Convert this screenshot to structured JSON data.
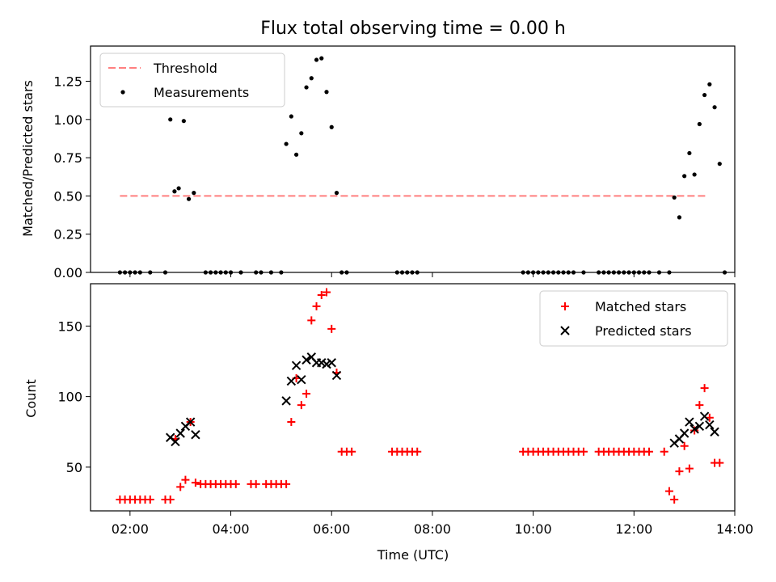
{
  "chart_data": [
    {
      "type": "scatter",
      "title": "Flux total observing time = 0.00 h",
      "xlabel": "",
      "ylabel": "Matched/Predicted stars",
      "xlim": [
        "01:13",
        "14:00"
      ],
      "ylim": [
        0,
        1.48
      ],
      "x_ticks": [
        "02:00",
        "04:00",
        "06:00",
        "08:00",
        "10:00",
        "12:00",
        "14:00"
      ],
      "x_ticklabels_visible": false,
      "y_ticks": [
        0.0,
        0.25,
        0.5,
        0.75,
        1.0,
        1.25
      ],
      "y_ticklabels": [
        "0.00",
        "0.25",
        "0.50",
        "0.75",
        "1.00",
        "1.25"
      ],
      "grid": false,
      "legend_position": "top-left",
      "legend": [
        {
          "label": "Threshold",
          "kind": "dashed-line",
          "color": "#ff7f7f"
        },
        {
          "label": "Measurements",
          "kind": "dot",
          "color": "#000000"
        }
      ],
      "threshold": {
        "value": 0.5,
        "x_start": "01:48",
        "x_end": "13:28",
        "color": "#ff7f7f"
      },
      "series": [
        {
          "name": "Measurements",
          "color": "#000000",
          "points": [
            [
              "01:48",
              0
            ],
            [
              "01:54",
              0
            ],
            [
              "02:00",
              0
            ],
            [
              "02:06",
              0
            ],
            [
              "02:12",
              0
            ],
            [
              "02:24",
              0
            ],
            [
              "02:42",
              0
            ],
            [
              "02:48",
              1.0
            ],
            [
              "02:53",
              0.53
            ],
            [
              "02:58",
              0.55
            ],
            [
              "03:04",
              0.99
            ],
            [
              "03:10",
              0.48
            ],
            [
              "03:16",
              0.52
            ],
            [
              "03:30",
              0
            ],
            [
              "03:36",
              0
            ],
            [
              "03:42",
              0
            ],
            [
              "03:48",
              0
            ],
            [
              "03:54",
              0
            ],
            [
              "04:00",
              0
            ],
            [
              "04:12",
              0
            ],
            [
              "04:30",
              0
            ],
            [
              "04:36",
              0
            ],
            [
              "04:48",
              0
            ],
            [
              "05:00",
              0
            ],
            [
              "05:06",
              0.84
            ],
            [
              "05:12",
              1.02
            ],
            [
              "05:18",
              0.77
            ],
            [
              "05:24",
              0.91
            ],
            [
              "05:30",
              1.21
            ],
            [
              "05:36",
              1.27
            ],
            [
              "05:42",
              1.39
            ],
            [
              "05:48",
              1.4
            ],
            [
              "05:54",
              1.18
            ],
            [
              "06:00",
              0.95
            ],
            [
              "06:06",
              0.52
            ],
            [
              "06:12",
              0
            ],
            [
              "06:18",
              0
            ],
            [
              "07:18",
              0
            ],
            [
              "07:24",
              0
            ],
            [
              "07:30",
              0
            ],
            [
              "07:36",
              0
            ],
            [
              "07:42",
              0
            ],
            [
              "09:48",
              0
            ],
            [
              "09:54",
              0
            ],
            [
              "10:00",
              0
            ],
            [
              "10:06",
              0
            ],
            [
              "10:12",
              0
            ],
            [
              "10:18",
              0
            ],
            [
              "10:24",
              0
            ],
            [
              "10:30",
              0
            ],
            [
              "10:36",
              0
            ],
            [
              "10:42",
              0
            ],
            [
              "10:48",
              0
            ],
            [
              "11:00",
              0
            ],
            [
              "11:18",
              0
            ],
            [
              "11:24",
              0
            ],
            [
              "11:30",
              0
            ],
            [
              "11:36",
              0
            ],
            [
              "11:42",
              0
            ],
            [
              "11:48",
              0
            ],
            [
              "11:54",
              0
            ],
            [
              "12:00",
              0
            ],
            [
              "12:06",
              0
            ],
            [
              "12:12",
              0
            ],
            [
              "12:18",
              0
            ],
            [
              "12:30",
              0
            ],
            [
              "12:42",
              0
            ],
            [
              "12:48",
              0.49
            ],
            [
              "12:54",
              0.36
            ],
            [
              "13:00",
              0.63
            ],
            [
              "13:06",
              0.78
            ],
            [
              "13:12",
              0.64
            ],
            [
              "13:18",
              0.97
            ],
            [
              "13:24",
              1.16
            ],
            [
              "13:30",
              1.23
            ],
            [
              "13:36",
              1.08
            ],
            [
              "13:42",
              0.71
            ],
            [
              "13:48",
              0
            ]
          ]
        }
      ]
    },
    {
      "type": "scatter",
      "title": "",
      "xlabel": "Time (UTC)",
      "ylabel": "Count",
      "xlim": [
        "01:13",
        "14:00"
      ],
      "ylim": [
        19,
        180
      ],
      "x_ticks": [
        "02:00",
        "04:00",
        "06:00",
        "08:00",
        "10:00",
        "12:00",
        "14:00"
      ],
      "x_ticklabels": [
        "02:00",
        "04:00",
        "06:00",
        "08:00",
        "10:00",
        "12:00",
        "14:00"
      ],
      "y_ticks": [
        50,
        100,
        150
      ],
      "y_ticklabels": [
        "50",
        "100",
        "150"
      ],
      "grid": false,
      "legend_position": "top-right",
      "legend": [
        {
          "label": "Matched stars",
          "kind": "plus",
          "color": "#ff0000"
        },
        {
          "label": "Predicted stars",
          "kind": "x",
          "color": "#000000"
        }
      ],
      "series": [
        {
          "name": "Matched stars",
          "color": "#ff0000",
          "marker": "plus",
          "points": [
            [
              "01:48",
              27
            ],
            [
              "01:54",
              27
            ],
            [
              "02:00",
              27
            ],
            [
              "02:06",
              27
            ],
            [
              "02:12",
              27
            ],
            [
              "02:18",
              27
            ],
            [
              "02:24",
              27
            ],
            [
              "02:42",
              27
            ],
            [
              "02:48",
              27
            ],
            [
              "02:54",
              70
            ],
            [
              "03:00",
              36
            ],
            [
              "03:06",
              41
            ],
            [
              "03:12",
              82
            ],
            [
              "03:18",
              39
            ],
            [
              "03:24",
              38
            ],
            [
              "03:30",
              38
            ],
            [
              "03:36",
              38
            ],
            [
              "03:42",
              38
            ],
            [
              "03:48",
              38
            ],
            [
              "03:54",
              38
            ],
            [
              "04:00",
              38
            ],
            [
              "04:06",
              38
            ],
            [
              "04:24",
              38
            ],
            [
              "04:30",
              38
            ],
            [
              "04:42",
              38
            ],
            [
              "04:48",
              38
            ],
            [
              "04:54",
              38
            ],
            [
              "05:00",
              38
            ],
            [
              "05:06",
              38
            ],
            [
              "05:12",
              82
            ],
            [
              "05:18",
              113
            ],
            [
              "05:24",
              94
            ],
            [
              "05:30",
              102
            ],
            [
              "05:36",
              154
            ],
            [
              "05:42",
              164
            ],
            [
              "05:48",
              172
            ],
            [
              "05:54",
              174
            ],
            [
              "06:00",
              148
            ],
            [
              "06:06",
              117
            ],
            [
              "06:12",
              61
            ],
            [
              "06:18",
              61
            ],
            [
              "06:24",
              61
            ],
            [
              "07:12",
              61
            ],
            [
              "07:18",
              61
            ],
            [
              "07:24",
              61
            ],
            [
              "07:30",
              61
            ],
            [
              "07:36",
              61
            ],
            [
              "07:42",
              61
            ],
            [
              "09:48",
              61
            ],
            [
              "09:54",
              61
            ],
            [
              "10:00",
              61
            ],
            [
              "10:06",
              61
            ],
            [
              "10:12",
              61
            ],
            [
              "10:18",
              61
            ],
            [
              "10:24",
              61
            ],
            [
              "10:30",
              61
            ],
            [
              "10:36",
              61
            ],
            [
              "10:42",
              61
            ],
            [
              "10:48",
              61
            ],
            [
              "10:54",
              61
            ],
            [
              "11:00",
              61
            ],
            [
              "11:18",
              61
            ],
            [
              "11:24",
              61
            ],
            [
              "11:30",
              61
            ],
            [
              "11:36",
              61
            ],
            [
              "11:42",
              61
            ],
            [
              "11:48",
              61
            ],
            [
              "11:54",
              61
            ],
            [
              "12:00",
              61
            ],
            [
              "12:06",
              61
            ],
            [
              "12:12",
              61
            ],
            [
              "12:18",
              61
            ],
            [
              "12:36",
              61
            ],
            [
              "12:42",
              33
            ],
            [
              "12:48",
              27
            ],
            [
              "12:54",
              47
            ],
            [
              "13:00",
              65
            ],
            [
              "13:06",
              49
            ],
            [
              "13:12",
              76
            ],
            [
              "13:18",
              94
            ],
            [
              "13:24",
              106
            ],
            [
              "13:30",
              85
            ],
            [
              "13:36",
              53
            ],
            [
              "13:42",
              53
            ]
          ]
        },
        {
          "name": "Predicted stars",
          "color": "#000000",
          "marker": "x",
          "points": [
            [
              "02:48",
              71
            ],
            [
              "02:54",
              68
            ],
            [
              "03:00",
              74
            ],
            [
              "03:06",
              79
            ],
            [
              "03:12",
              82
            ],
            [
              "03:18",
              73
            ],
            [
              "05:06",
              97
            ],
            [
              "05:12",
              111
            ],
            [
              "05:18",
              122
            ],
            [
              "05:24",
              112
            ],
            [
              "05:30",
              126
            ],
            [
              "05:36",
              128
            ],
            [
              "05:42",
              124
            ],
            [
              "05:48",
              124
            ],
            [
              "05:54",
              123
            ],
            [
              "06:00",
              124
            ],
            [
              "06:06",
              115
            ],
            [
              "12:48",
              67
            ],
            [
              "12:54",
              70
            ],
            [
              "13:00",
              74
            ],
            [
              "13:06",
              82
            ],
            [
              "13:12",
              77
            ],
            [
              "13:18",
              79
            ],
            [
              "13:24",
              86
            ],
            [
              "13:30",
              80
            ],
            [
              "13:36",
              75
            ]
          ]
        }
      ]
    }
  ]
}
